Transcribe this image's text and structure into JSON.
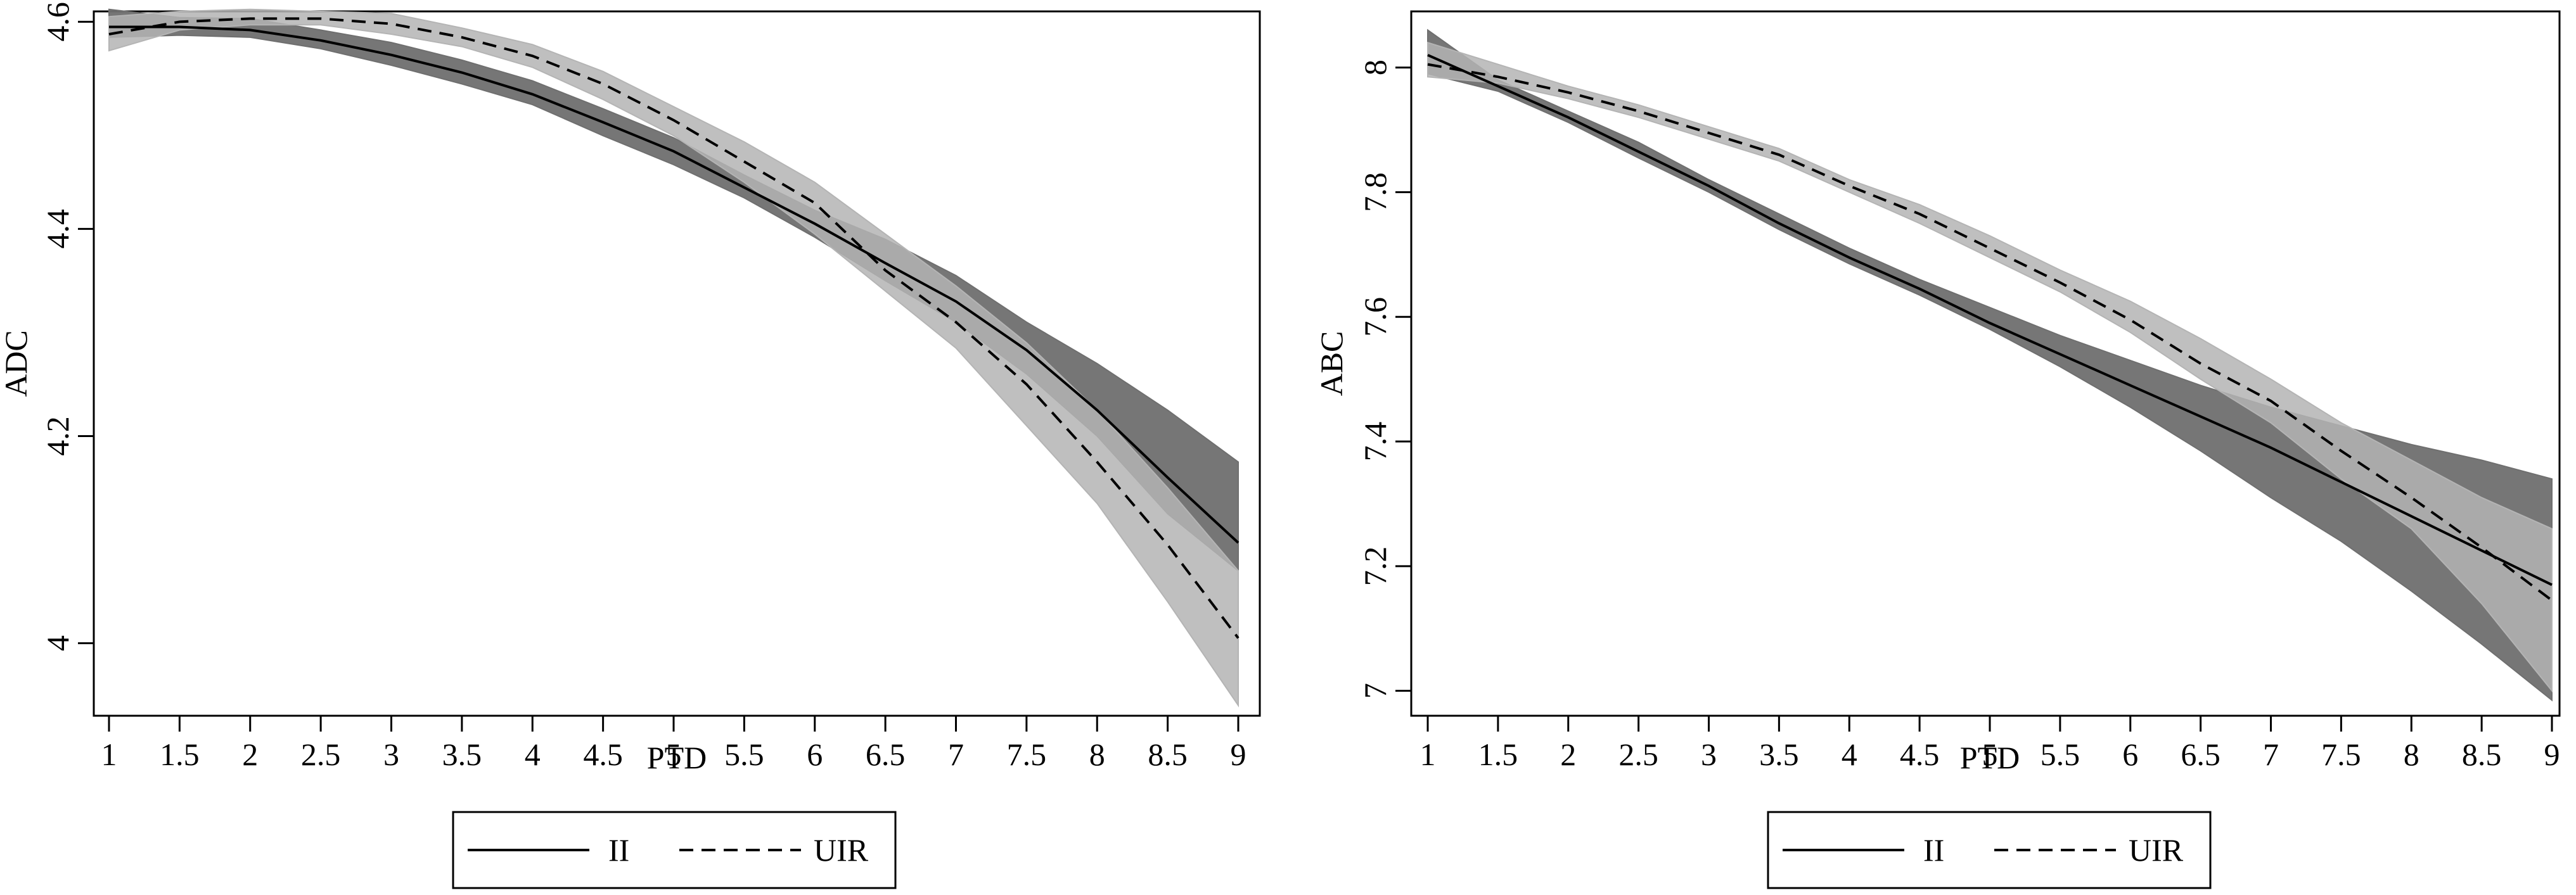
{
  "chart_data": [
    {
      "type": "line",
      "xlabel": "PTD",
      "ylabel": "ADC",
      "xlim": [
        1,
        9
      ],
      "ylim": [
        3.93,
        4.61
      ],
      "xticks": [
        "1",
        "1.5",
        "2",
        "2.5",
        "3",
        "3.5",
        "4",
        "4.5",
        "5",
        "5.5",
        "6",
        "6.5",
        "7",
        "7.5",
        "8",
        "8.5",
        "9"
      ],
      "yticks": [
        "4",
        "4.2",
        "4.4",
        "4.6"
      ],
      "legend_position": "bottom",
      "legend": [
        "II",
        "UIR"
      ],
      "x": [
        1,
        1.5,
        2,
        2.5,
        3,
        3.5,
        4,
        4.5,
        5,
        5.5,
        6,
        6.5,
        7,
        7.5,
        8,
        8.5,
        9
      ],
      "series": [
        {
          "name": "II",
          "dash": "solid",
          "band_color": "#6f6f6f",
          "values": [
            4.595,
            4.595,
            4.592,
            4.582,
            4.568,
            4.551,
            4.53,
            4.503,
            4.475,
            4.44,
            4.405,
            4.367,
            4.33,
            4.283,
            4.225,
            4.16,
            4.097
          ],
          "lower": [
            4.585,
            4.587,
            4.585,
            4.574,
            4.558,
            4.54,
            4.52,
            4.49,
            4.462,
            4.43,
            4.392,
            4.35,
            4.31,
            4.26,
            4.2,
            4.125,
            4.07
          ],
          "upper": [
            4.612,
            4.604,
            4.603,
            4.592,
            4.58,
            4.563,
            4.543,
            4.516,
            4.488,
            4.452,
            4.418,
            4.39,
            4.355,
            4.31,
            4.27,
            4.225,
            4.175
          ]
        },
        {
          "name": "UIR",
          "dash": "dashed",
          "band_color": "#b4b4b4",
          "values": [
            4.588,
            4.6,
            4.603,
            4.603,
            4.598,
            4.585,
            4.567,
            4.54,
            4.505,
            4.465,
            4.425,
            4.36,
            4.31,
            4.25,
            4.175,
            4.095,
            4.005
          ],
          "lower": [
            4.572,
            4.592,
            4.597,
            4.597,
            4.588,
            4.576,
            4.556,
            4.525,
            4.49,
            4.445,
            4.395,
            4.34,
            4.285,
            4.21,
            4.135,
            4.04,
            3.94
          ],
          "upper": [
            4.605,
            4.61,
            4.612,
            4.61,
            4.608,
            4.594,
            4.578,
            4.552,
            4.518,
            4.484,
            4.445,
            4.395,
            4.345,
            4.29,
            4.225,
            4.15,
            4.07
          ]
        }
      ]
    },
    {
      "type": "line",
      "xlabel": "PTD",
      "ylabel": "ABC",
      "xlim": [
        1,
        9
      ],
      "ylim": [
        6.96,
        8.09
      ],
      "xticks": [
        "1",
        "1.5",
        "2",
        "2.5",
        "3",
        "3.5",
        "4",
        "4.5",
        "5",
        "5.5",
        "6",
        "6.5",
        "7",
        "7.5",
        "8",
        "8.5",
        "9"
      ],
      "yticks": [
        "7",
        "7.2",
        "7.4",
        "7.6",
        "7.8",
        "8"
      ],
      "legend_position": "bottom",
      "legend": [
        "II",
        "UIR"
      ],
      "x": [
        1,
        1.5,
        2,
        2.5,
        3,
        3.5,
        4,
        4.5,
        5,
        5.5,
        6,
        6.5,
        7,
        7.5,
        8,
        8.5,
        9
      ],
      "series": [
        {
          "name": "II",
          "dash": "solid",
          "band_color": "#6f6f6f",
          "values": [
            8.02,
            7.97,
            7.92,
            7.865,
            7.81,
            7.75,
            7.695,
            7.645,
            7.59,
            7.54,
            7.49,
            7.44,
            7.39,
            7.335,
            7.28,
            7.225,
            7.17
          ],
          "lower": [
            7.99,
            7.962,
            7.912,
            7.855,
            7.8,
            7.74,
            7.685,
            7.635,
            7.58,
            7.52,
            7.455,
            7.385,
            7.31,
            7.24,
            7.16,
            7.075,
            6.985
          ],
          "upper": [
            8.06,
            7.98,
            7.93,
            7.88,
            7.82,
            7.765,
            7.71,
            7.66,
            7.615,
            7.57,
            7.53,
            7.49,
            7.455,
            7.425,
            7.395,
            7.37,
            7.34
          ]
        },
        {
          "name": "UIR",
          "dash": "dashed",
          "band_color": "#b4b4b4",
          "values": [
            8.005,
            7.985,
            7.96,
            7.93,
            7.895,
            7.86,
            7.81,
            7.765,
            7.71,
            7.655,
            7.595,
            7.525,
            7.465,
            7.385,
            7.31,
            7.23,
            7.145
          ],
          "lower": [
            7.985,
            7.975,
            7.95,
            7.92,
            7.885,
            7.85,
            7.8,
            7.75,
            7.695,
            7.64,
            7.575,
            7.5,
            7.43,
            7.34,
            7.26,
            7.14,
            7.0
          ],
          "upper": [
            8.04,
            8.005,
            7.97,
            7.94,
            7.905,
            7.87,
            7.82,
            7.78,
            7.73,
            7.675,
            7.625,
            7.565,
            7.5,
            7.43,
            7.37,
            7.31,
            7.26
          ]
        }
      ]
    }
  ]
}
